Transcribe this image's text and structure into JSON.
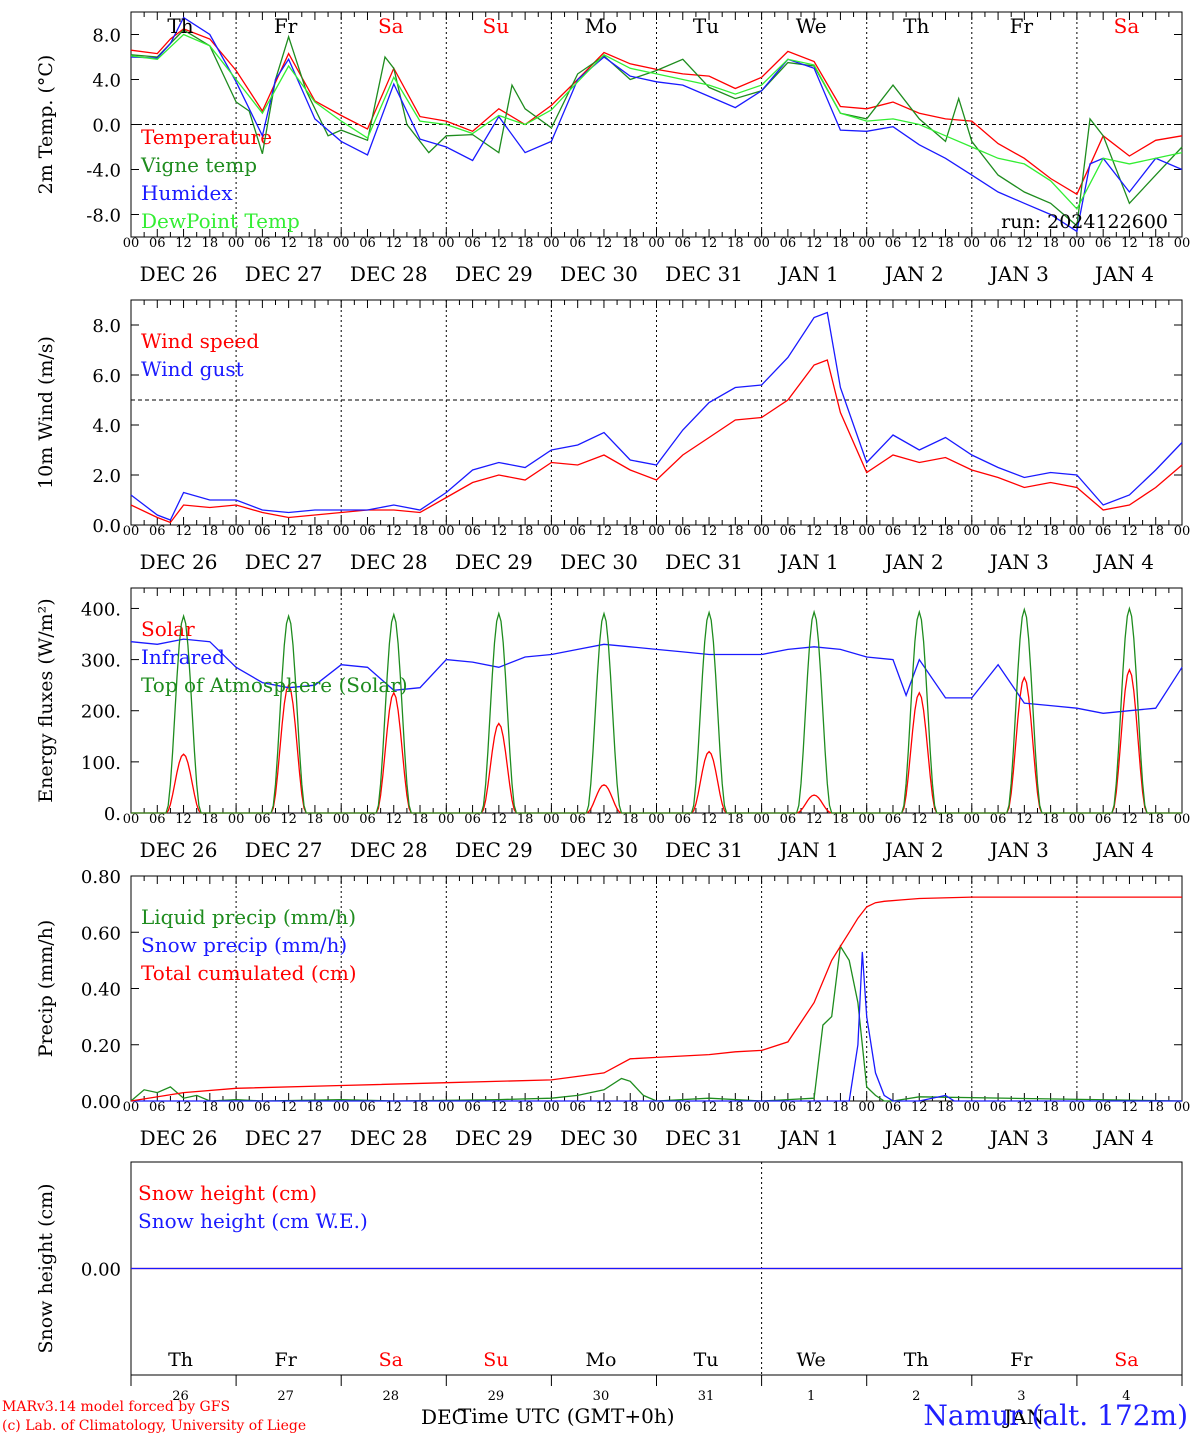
{
  "footer": {
    "model": "MARv3.14 model forced by GFS",
    "lab": "(c) Lab. of Climatology, University of Liege",
    "time_axis": "Time UTC (GMT+0h)",
    "station": "Namur (alt. 172m)",
    "month_dec": "DEC",
    "month_jan": "JAN"
  },
  "colors": {
    "red": "#ff0000",
    "green": "#1e8c1e",
    "blue": "#1a1aff",
    "lightgreen": "#33ee33",
    "weekend": "#ff0000"
  },
  "day_names": [
    {
      "label": "Th",
      "weekend": false
    },
    {
      "label": "Fr",
      "weekend": false
    },
    {
      "label": "Sa",
      "weekend": true
    },
    {
      "label": "Su",
      "weekend": true
    },
    {
      "label": "Mo",
      "weekend": false
    },
    {
      "label": "Tu",
      "weekend": false
    },
    {
      "label": "We",
      "weekend": false
    },
    {
      "label": "Th",
      "weekend": false
    },
    {
      "label": "Fr",
      "weekend": false
    },
    {
      "label": "Sa",
      "weekend": true
    }
  ],
  "date_labels": [
    "DEC 26",
    "DEC 27",
    "DEC 28",
    "DEC 29",
    "DEC 30",
    "DEC 31",
    "JAN  1",
    "JAN  2",
    "JAN  3",
    "JAN  4"
  ],
  "day_numbers": [
    "26",
    "27",
    "28",
    "29",
    "30",
    "31",
    "1",
    "2",
    "3",
    "4"
  ],
  "hour_ticks": [
    "00",
    "06",
    "12",
    "18"
  ],
  "hour_end": "00",
  "chart_data": [
    {
      "type": "line",
      "ylabel": "2m Temp. (°C)",
      "ylim": [
        -10,
        10
      ],
      "yticks": [
        "8.0",
        "4.0",
        "0.0",
        "-4.0",
        "-8.0"
      ],
      "ytick_values": [
        8,
        4,
        0,
        -4,
        -8
      ],
      "ref_line": 0,
      "run_label": "run: 2024122600",
      "x_unit": "hours from 2024-12-26 00 UTC",
      "series": [
        {
          "name": "Temperature",
          "color": "#ff0000",
          "x": [
            0,
            6,
            9,
            12,
            18,
            24,
            30,
            36,
            42,
            48,
            54,
            60,
            66,
            72,
            78,
            84,
            90,
            96,
            102,
            108,
            114,
            120,
            126,
            132,
            138,
            144,
            150,
            156,
            162,
            168,
            174,
            180,
            186,
            192,
            198,
            204,
            210,
            216,
            222,
            228,
            234,
            240
          ],
          "y": [
            6.6,
            6.3,
            7.6,
            8.5,
            7.6,
            4.8,
            1.2,
            6.3,
            2.1,
            0.8,
            -0.4,
            5.0,
            0.7,
            0.3,
            -0.6,
            1.4,
            0.0,
            1.7,
            4.0,
            6.4,
            5.4,
            4.9,
            4.5,
            4.3,
            3.2,
            4.2,
            6.5,
            5.6,
            1.6,
            1.4,
            2.0,
            1.0,
            0.5,
            0.3,
            -1.7,
            -3.0,
            -4.8,
            -6.2,
            -1.0,
            -2.8,
            -1.4,
            -1.0
          ]
        },
        {
          "name": "Vigne temp",
          "color": "#1e8c1e",
          "x": [
            0,
            6,
            9,
            12,
            18,
            24,
            27,
            30,
            33,
            36,
            40,
            45,
            48,
            54,
            58,
            60,
            63,
            68,
            72,
            78,
            84,
            87,
            90,
            96,
            102,
            108,
            114,
            120,
            126,
            132,
            138,
            144,
            150,
            156,
            162,
            168,
            174,
            180,
            186,
            189,
            192,
            198,
            204,
            210,
            216,
            219,
            222,
            228,
            234,
            240
          ],
          "y": [
            6.2,
            6.0,
            7.2,
            8.4,
            7.0,
            2.0,
            1.2,
            -2.6,
            4.0,
            7.8,
            3.0,
            -1.0,
            -0.5,
            -1.4,
            6.0,
            5.0,
            0.0,
            -2.5,
            -1.0,
            -0.9,
            -2.5,
            3.5,
            1.4,
            -0.3,
            4.5,
            6.1,
            4.0,
            4.8,
            5.8,
            3.3,
            2.3,
            3.0,
            5.5,
            5.2,
            1.0,
            0.5,
            3.5,
            0.5,
            -1.5,
            2.3,
            -1.5,
            -4.5,
            -6.0,
            -7.0,
            -9.0,
            0.5,
            -1.0,
            -7.0,
            -4.5,
            -2.0
          ]
        },
        {
          "name": "Humidex",
          "color": "#1a1aff",
          "x": [
            0,
            6,
            9,
            12,
            18,
            24,
            30,
            33,
            36,
            42,
            48,
            54,
            60,
            66,
            72,
            78,
            84,
            90,
            96,
            102,
            108,
            114,
            120,
            126,
            132,
            138,
            144,
            150,
            156,
            162,
            168,
            174,
            180,
            186,
            192,
            198,
            204,
            210,
            216,
            219,
            222,
            228,
            234,
            240
          ],
          "y": [
            6.0,
            5.9,
            7.2,
            9.5,
            8.0,
            3.8,
            -1.0,
            4.0,
            5.8,
            0.5,
            -1.5,
            -2.7,
            3.6,
            -1.3,
            -2.0,
            -3.2,
            0.7,
            -2.5,
            -1.5,
            4.0,
            6.0,
            4.3,
            3.8,
            3.5,
            2.5,
            1.5,
            3.0,
            5.8,
            5.0,
            -0.5,
            -0.6,
            -0.2,
            -1.8,
            -3.0,
            -4.5,
            -6.0,
            -7.0,
            -8.0,
            -9.5,
            -3.5,
            -3.0,
            -6.0,
            -3.0,
            -4.0
          ]
        },
        {
          "name": "DewPoint Temp",
          "color": "#33ee33",
          "x": [
            0,
            6,
            12,
            18,
            24,
            30,
            36,
            42,
            48,
            54,
            60,
            66,
            72,
            78,
            84,
            90,
            96,
            102,
            108,
            114,
            120,
            126,
            132,
            138,
            144,
            150,
            156,
            162,
            168,
            174,
            180,
            186,
            192,
            198,
            204,
            210,
            216,
            222,
            228,
            234,
            240
          ],
          "y": [
            6.1,
            5.8,
            8.0,
            7.0,
            4.0,
            1.0,
            5.2,
            2.0,
            0.3,
            -1.2,
            4.2,
            0.3,
            0.0,
            -0.8,
            0.8,
            0.0,
            1.3,
            3.8,
            6.2,
            5.0,
            4.5,
            4.0,
            3.5,
            2.7,
            3.5,
            5.8,
            5.3,
            1.0,
            0.3,
            0.5,
            0.0,
            -1.0,
            -2.0,
            -3.0,
            -3.5,
            -5.0,
            -7.5,
            -3.0,
            -3.5,
            -3.0,
            -2.5
          ]
        }
      ]
    },
    {
      "type": "line",
      "ylabel": "10m Wind (m/s)",
      "ylim": [
        0,
        9
      ],
      "yticks": [
        "8.0",
        "6.0",
        "4.0",
        "2.0",
        "0.0"
      ],
      "ytick_values": [
        8,
        6,
        4,
        2,
        0
      ],
      "ref_line": 5,
      "series": [
        {
          "name": "Wind speed",
          "color": "#ff0000",
          "x": [
            0,
            6,
            9,
            12,
            18,
            24,
            30,
            36,
            42,
            48,
            54,
            60,
            66,
            72,
            78,
            84,
            90,
            96,
            102,
            108,
            114,
            120,
            126,
            132,
            138,
            144,
            150,
            156,
            159,
            162,
            168,
            174,
            180,
            186,
            192,
            198,
            204,
            210,
            216,
            222,
            228,
            234,
            240
          ],
          "y": [
            0.8,
            0.3,
            0.1,
            0.8,
            0.7,
            0.8,
            0.5,
            0.3,
            0.4,
            0.5,
            0.6,
            0.6,
            0.5,
            1.1,
            1.7,
            2.0,
            1.8,
            2.5,
            2.4,
            2.8,
            2.2,
            1.8,
            2.8,
            3.5,
            4.2,
            4.3,
            5.0,
            6.4,
            6.6,
            4.5,
            2.1,
            2.8,
            2.5,
            2.7,
            2.2,
            1.9,
            1.5,
            1.7,
            1.5,
            0.6,
            0.8,
            1.5,
            2.4
          ]
        },
        {
          "name": "Wind gust",
          "color": "#1a1aff",
          "x": [
            0,
            6,
            9,
            12,
            18,
            24,
            30,
            36,
            42,
            48,
            54,
            60,
            66,
            72,
            78,
            84,
            90,
            96,
            102,
            108,
            114,
            120,
            126,
            132,
            138,
            144,
            150,
            156,
            159,
            162,
            168,
            174,
            180,
            186,
            192,
            198,
            204,
            210,
            216,
            222,
            228,
            234,
            240
          ],
          "y": [
            1.2,
            0.4,
            0.2,
            1.3,
            1.0,
            1.0,
            0.6,
            0.5,
            0.6,
            0.6,
            0.6,
            0.8,
            0.6,
            1.3,
            2.2,
            2.5,
            2.3,
            3.0,
            3.2,
            3.7,
            2.6,
            2.4,
            3.8,
            4.9,
            5.5,
            5.6,
            6.7,
            8.3,
            8.5,
            5.5,
            2.5,
            3.6,
            3.0,
            3.5,
            2.8,
            2.3,
            1.9,
            2.1,
            2.0,
            0.8,
            1.2,
            2.2,
            3.3
          ]
        }
      ]
    },
    {
      "type": "line",
      "ylabel": "Energy fluxes (W/m²)",
      "ylim": [
        0,
        440
      ],
      "yticks": [
        "400.",
        "300.",
        "200.",
        "100.",
        "0."
      ],
      "ytick_values": [
        400,
        300,
        200,
        100,
        0
      ],
      "series": [
        {
          "name": "Solar",
          "color": "#ff0000",
          "daytime_peaks_x": [
            11,
            35,
            59,
            83,
            107,
            131,
            155,
            179,
            203,
            227
          ],
          "peaks_y": [
            115,
            250,
            235,
            175,
            55,
            120,
            35,
            235,
            265,
            280
          ],
          "window_hours": [
            8,
            16
          ]
        },
        {
          "name": "Infrared",
          "color": "#1a1aff",
          "x": [
            0,
            6,
            12,
            18,
            24,
            30,
            36,
            42,
            48,
            54,
            60,
            66,
            72,
            78,
            84,
            90,
            96,
            102,
            108,
            114,
            120,
            126,
            132,
            138,
            144,
            150,
            156,
            162,
            168,
            174,
            177,
            180,
            186,
            192,
            198,
            204,
            210,
            216,
            222,
            228,
            234,
            240
          ],
          "y": [
            335,
            330,
            340,
            335,
            285,
            255,
            245,
            250,
            290,
            285,
            240,
            245,
            300,
            295,
            285,
            305,
            310,
            320,
            330,
            325,
            320,
            315,
            310,
            310,
            310,
            320,
            325,
            320,
            305,
            300,
            230,
            300,
            225,
            225,
            290,
            215,
            210,
            205,
            195,
            200,
            205,
            285
          ]
        },
        {
          "name": "Top of Atmosphere (Solar)",
          "color": "#1e8c1e",
          "daytime_peaks_x": [
            11,
            35,
            59,
            83,
            107,
            131,
            155,
            179,
            203,
            227
          ],
          "peaks_y": [
            385,
            385,
            388,
            390,
            390,
            392,
            393,
            393,
            398,
            400
          ],
          "window_hours": [
            8,
            16
          ]
        }
      ]
    },
    {
      "type": "line",
      "ylabel": "Precip (mm/h)",
      "ylim": [
        0,
        0.8
      ],
      "yticks": [
        "0.80",
        "0.60",
        "0.40",
        "0.20",
        "0.00"
      ],
      "ytick_values": [
        0.8,
        0.6,
        0.4,
        0.2,
        0.0
      ],
      "series": [
        {
          "name": "Liquid precip (mm/h)",
          "color": "#1e8c1e",
          "x": [
            0,
            3,
            6,
            9,
            12,
            15,
            18,
            24,
            30,
            48,
            60,
            84,
            96,
            102,
            108,
            112,
            114,
            117,
            120,
            132,
            144,
            150,
            156,
            158,
            160,
            162,
            164,
            166,
            168,
            170,
            172,
            174,
            180,
            240
          ],
          "y": [
            0,
            0.04,
            0.03,
            0.05,
            0.01,
            0.02,
            0,
            0.005,
            0,
            0.005,
            0,
            0.005,
            0.01,
            0.02,
            0.04,
            0.08,
            0.07,
            0.02,
            0,
            0.01,
            0,
            0.005,
            0.01,
            0.27,
            0.3,
            0.55,
            0.5,
            0.35,
            0.05,
            0.02,
            0,
            0,
            0.015,
            0
          ]
        },
        {
          "name": "Snow precip (mm/h)",
          "color": "#1a1aff",
          "x": [
            0,
            164,
            166,
            167,
            168,
            170,
            172,
            174,
            180,
            186,
            188,
            190,
            240
          ],
          "y": [
            0,
            0,
            0.2,
            0.53,
            0.3,
            0.1,
            0.02,
            0,
            0,
            0.02,
            0,
            0,
            0
          ]
        },
        {
          "name": "Total cumulated (cm)",
          "color": "#ff0000",
          "x": [
            0,
            12,
            24,
            48,
            72,
            96,
            108,
            114,
            120,
            132,
            138,
            144,
            150,
            156,
            160,
            162,
            164,
            166,
            168,
            170,
            172,
            176,
            180,
            192,
            240
          ],
          "y": [
            0,
            0.03,
            0.045,
            0.055,
            0.065,
            0.075,
            0.1,
            0.15,
            0.155,
            0.165,
            0.175,
            0.18,
            0.21,
            0.35,
            0.5,
            0.55,
            0.6,
            0.65,
            0.69,
            0.705,
            0.71,
            0.715,
            0.72,
            0.725,
            0.725
          ]
        }
      ]
    },
    {
      "type": "line",
      "ylabel": "Snow height (cm)",
      "ylim": [
        -1,
        1
      ],
      "yticks": [
        "0.00"
      ],
      "ytick_values": [
        0
      ],
      "series": [
        {
          "name": "Snow height (cm)",
          "color": "#ff0000",
          "x": [
            0,
            240
          ],
          "y": [
            0,
            0
          ]
        },
        {
          "name": "Snow height (cm W.E.)",
          "color": "#1a1aff",
          "x": [
            0,
            240
          ],
          "y": [
            0,
            0
          ]
        }
      ]
    }
  ]
}
